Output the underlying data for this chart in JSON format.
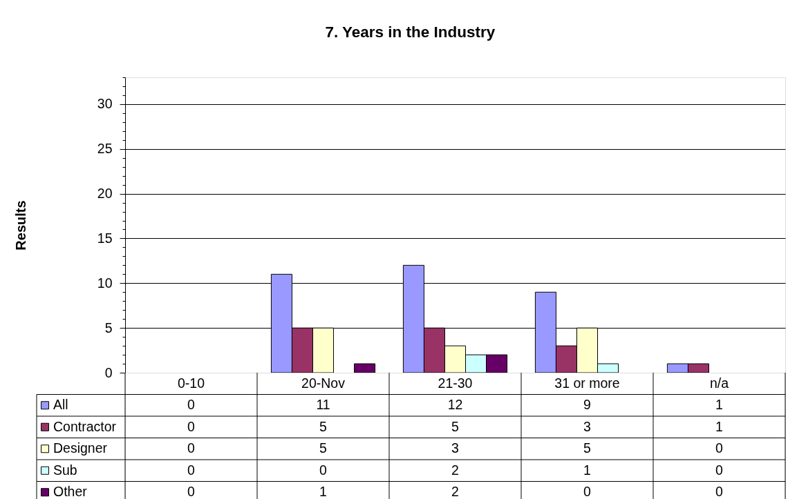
{
  "chart_data": {
    "type": "bar",
    "title": "7. Years in the Industry",
    "ylabel": "Results",
    "categories": [
      "0-10",
      "20-Nov",
      "21-30",
      "31 or more",
      "n/a"
    ],
    "series": [
      {
        "name": "All",
        "color": "#9999ff",
        "values": [
          0,
          11,
          12,
          9,
          1
        ]
      },
      {
        "name": "Contractor",
        "color": "#993366",
        "values": [
          0,
          5,
          5,
          3,
          1
        ]
      },
      {
        "name": "Designer",
        "color": "#ffffcc",
        "values": [
          0,
          5,
          3,
          5,
          0
        ]
      },
      {
        "name": "Sub",
        "color": "#ccffff",
        "values": [
          0,
          0,
          2,
          1,
          0
        ]
      },
      {
        "name": "Other",
        "color": "#660066",
        "values": [
          0,
          1,
          2,
          0,
          0
        ]
      }
    ],
    "ylim": [
      0,
      33
    ],
    "yticks": [
      0,
      {
        "value": 1,
        "label": null
      },
      {
        "value": 2,
        "label": null
      },
      {
        "value": 3,
        "label": null
      },
      {
        "value": 4,
        "label": null
      },
      5,
      {
        "value": 6,
        "label": null
      },
      {
        "value": 7,
        "label": null
      },
      {
        "value": 8,
        "label": null
      },
      {
        "value": 9,
        "label": null
      },
      10,
      {
        "value": 11,
        "label": null
      },
      {
        "value": 12,
        "label": null
      },
      {
        "value": 13,
        "label": null
      },
      {
        "value": 14,
        "label": null
      },
      15,
      {
        "value": 16,
        "label": null
      },
      {
        "value": 17,
        "label": null
      },
      {
        "value": 18,
        "label": null
      },
      {
        "value": 19,
        "label": null
      },
      20,
      {
        "value": 21,
        "label": null
      },
      {
        "value": 22,
        "label": null
      },
      {
        "value": 23,
        "label": null
      },
      {
        "value": 24,
        "label": null
      },
      25,
      {
        "value": 26,
        "label": null
      },
      {
        "value": 27,
        "label": null
      },
      {
        "value": 28,
        "label": null
      },
      {
        "value": 29,
        "label": null
      },
      30,
      {
        "value": 31,
        "label": null
      },
      {
        "value": 32,
        "label": null
      },
      {
        "value": 33,
        "label": null
      }
    ],
    "grid": "y",
    "legend": "bottom left",
    "data_labels": true
  }
}
